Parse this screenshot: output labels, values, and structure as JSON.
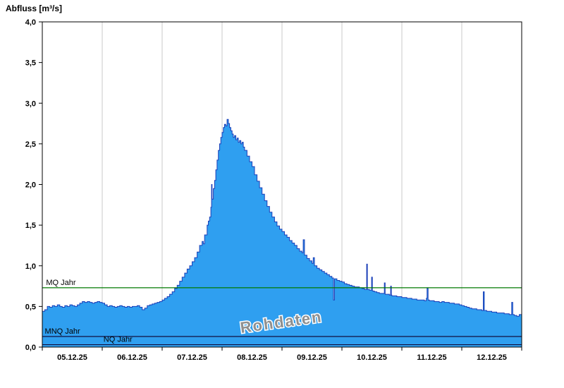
{
  "page": {
    "title": "Abfluss [m³/s]"
  },
  "chart_data": {
    "type": "area",
    "title": "Abfluss [m³/s]",
    "ylabel": "Abfluss [m³/s]",
    "xlabel": "",
    "ylim": [
      0,
      4.0
    ],
    "ytick_step": 0.5,
    "decimal_style": "comma",
    "grid": "vertical-day-separators",
    "legend_position": "none",
    "watermark": "Rohdaten",
    "series_name": "Rohdaten",
    "x_range_hours": [
      0,
      192
    ],
    "hours_per_day": 24,
    "day_labels": [
      "05.12.25",
      "06.12.25",
      "07.12.25",
      "08.12.25",
      "09.12.25",
      "10.12.25",
      "11.12.25",
      "12.12.25"
    ],
    "reference_lines": [
      {
        "name": "MQ Jahr",
        "value": 0.73,
        "color": "#007a00",
        "label_x_hours": 1.5,
        "label": "MQ Jahr"
      },
      {
        "name": "MNQ Jahr",
        "value": 0.13,
        "color": "#101040",
        "label_x_hours": 1.0,
        "label": "MNQ Jahr"
      },
      {
        "name": "NQ Jahr",
        "value": 0.03,
        "color": "#101040",
        "label_x_hours": 24.5,
        "label": "NQ Jahr"
      }
    ],
    "colors": {
      "fill": "#2f9ff0",
      "stroke": "#1a3eb8",
      "grid": "#c8c8c8",
      "border": "#000000",
      "tick_text": "#000000",
      "watermark_fill": "#8f8f8f",
      "watermark_outline": "#ffffff"
    },
    "points": [
      [
        0,
        0.44
      ],
      [
        1,
        0.46
      ],
      [
        2,
        0.5
      ],
      [
        3,
        0.49
      ],
      [
        4,
        0.51
      ],
      [
        5,
        0.5
      ],
      [
        6,
        0.52
      ],
      [
        7,
        0.5
      ],
      [
        8,
        0.49
      ],
      [
        9,
        0.51
      ],
      [
        10,
        0.5
      ],
      [
        11,
        0.52
      ],
      [
        12,
        0.51
      ],
      [
        13,
        0.5
      ],
      [
        14,
        0.52
      ],
      [
        15,
        0.54
      ],
      [
        16,
        0.56
      ],
      [
        17,
        0.55
      ],
      [
        18,
        0.56
      ],
      [
        19,
        0.55
      ],
      [
        20,
        0.54
      ],
      [
        21,
        0.55
      ],
      [
        22,
        0.56
      ],
      [
        23,
        0.55
      ],
      [
        24,
        0.54
      ],
      [
        25,
        0.52
      ],
      [
        26,
        0.5
      ],
      [
        27,
        0.51
      ],
      [
        28,
        0.5
      ],
      [
        29,
        0.49
      ],
      [
        30,
        0.5
      ],
      [
        31,
        0.51
      ],
      [
        32,
        0.5
      ],
      [
        33,
        0.49
      ],
      [
        34,
        0.5
      ],
      [
        35,
        0.49
      ],
      [
        36,
        0.5
      ],
      [
        37,
        0.5
      ],
      [
        38,
        0.51
      ],
      [
        39,
        0.49
      ],
      [
        40,
        0.46
      ],
      [
        41,
        0.48
      ],
      [
        42,
        0.51
      ],
      [
        43,
        0.52
      ],
      [
        44,
        0.53
      ],
      [
        45,
        0.54
      ],
      [
        46,
        0.55
      ],
      [
        47,
        0.56
      ],
      [
        48,
        0.58
      ],
      [
        49,
        0.6
      ],
      [
        50,
        0.62
      ],
      [
        51,
        0.65
      ],
      [
        52,
        0.68
      ],
      [
        53,
        0.72
      ],
      [
        54,
        0.76
      ],
      [
        55,
        0.81
      ],
      [
        56,
        0.86
      ],
      [
        57,
        0.91
      ],
      [
        58,
        0.96
      ],
      [
        59,
        1.0
      ],
      [
        60,
        1.05
      ],
      [
        61,
        1.1
      ],
      [
        62,
        1.17
      ],
      [
        63,
        1.25
      ],
      [
        64,
        1.3
      ],
      [
        64.5,
        1.27
      ],
      [
        65,
        1.38
      ],
      [
        66,
        1.5
      ],
      [
        66.5,
        1.55
      ],
      [
        67,
        1.6
      ],
      [
        67.5,
        1.72
      ],
      [
        67.8,
        2.0
      ],
      [
        68,
        1.82
      ],
      [
        68.5,
        1.95
      ],
      [
        69,
        2.05
      ],
      [
        69.5,
        2.18
      ],
      [
        70,
        2.3
      ],
      [
        70.5,
        2.42
      ],
      [
        71,
        2.5
      ],
      [
        71.5,
        2.58
      ],
      [
        72,
        2.64
      ],
      [
        72.5,
        2.7
      ],
      [
        73,
        2.74
      ],
      [
        73.5,
        2.72
      ],
      [
        74,
        2.8
      ],
      [
        74.5,
        2.75
      ],
      [
        75,
        2.7
      ],
      [
        75.5,
        2.66
      ],
      [
        76,
        2.62
      ],
      [
        76.5,
        2.58
      ],
      [
        77,
        2.6
      ],
      [
        77.5,
        2.55
      ],
      [
        78,
        2.57
      ],
      [
        78.5,
        2.52
      ],
      [
        79,
        2.54
      ],
      [
        79.5,
        2.5
      ],
      [
        80,
        2.52
      ],
      [
        80.5,
        2.46
      ],
      [
        81,
        2.42
      ],
      [
        82,
        2.35
      ],
      [
        83,
        2.28
      ],
      [
        84,
        2.22
      ],
      [
        85,
        2.12
      ],
      [
        86,
        2.04
      ],
      [
        87,
        1.96
      ],
      [
        88,
        1.88
      ],
      [
        89,
        1.8
      ],
      [
        90,
        1.73
      ],
      [
        91,
        1.66
      ],
      [
        92,
        1.6
      ],
      [
        93,
        1.54
      ],
      [
        94,
        1.49
      ],
      [
        95,
        1.45
      ],
      [
        96,
        1.42
      ],
      [
        97,
        1.38
      ],
      [
        98,
        1.35
      ],
      [
        99,
        1.31
      ],
      [
        100,
        1.28
      ],
      [
        101,
        1.25
      ],
      [
        102,
        1.21
      ],
      [
        103,
        1.18
      ],
      [
        104,
        1.16
      ],
      [
        104.5,
        1.32
      ],
      [
        105,
        1.13
      ],
      [
        106,
        1.09
      ],
      [
        107,
        1.06
      ],
      [
        108,
        1.03
      ],
      [
        108.5,
        1.1
      ],
      [
        109,
        1.0
      ],
      [
        110,
        0.97
      ],
      [
        111,
        0.95
      ],
      [
        112,
        0.93
      ],
      [
        113,
        0.91
      ],
      [
        114,
        0.89
      ],
      [
        115,
        0.87
      ],
      [
        116,
        0.85
      ],
      [
        116.6,
        0.58
      ],
      [
        117,
        0.84
      ],
      [
        118,
        0.82
      ],
      [
        119,
        0.81
      ],
      [
        120,
        0.8
      ],
      [
        121,
        0.78
      ],
      [
        122,
        0.77
      ],
      [
        123,
        0.76
      ],
      [
        124,
        0.75
      ],
      [
        125,
        0.74
      ],
      [
        126,
        0.74
      ],
      [
        127,
        0.73
      ],
      [
        128,
        0.72
      ],
      [
        129,
        0.71
      ],
      [
        129.9,
        1.02
      ],
      [
        130.2,
        0.71
      ],
      [
        131,
        0.7
      ],
      [
        131.9,
        0.86
      ],
      [
        132.2,
        0.69
      ],
      [
        133,
        0.68
      ],
      [
        134,
        0.67
      ],
      [
        135,
        0.66
      ],
      [
        136,
        0.66
      ],
      [
        137,
        0.79
      ],
      [
        137.3,
        0.65
      ],
      [
        138,
        0.65
      ],
      [
        139,
        0.64
      ],
      [
        139.5,
        0.75
      ],
      [
        139.8,
        0.64
      ],
      [
        140,
        0.63
      ],
      [
        141,
        0.63
      ],
      [
        142,
        0.62
      ],
      [
        143,
        0.62
      ],
      [
        144,
        0.61
      ],
      [
        145,
        0.61
      ],
      [
        146,
        0.6
      ],
      [
        147,
        0.6
      ],
      [
        148,
        0.59
      ],
      [
        149,
        0.59
      ],
      [
        150,
        0.58
      ],
      [
        151,
        0.58
      ],
      [
        152,
        0.58
      ],
      [
        153,
        0.57
      ],
      [
        153.8,
        0.6
      ],
      [
        154.1,
        0.72
      ],
      [
        154.5,
        0.58
      ],
      [
        155,
        0.57
      ],
      [
        156,
        0.57
      ],
      [
        157,
        0.56
      ],
      [
        158,
        0.56
      ],
      [
        159,
        0.55
      ],
      [
        160,
        0.56
      ],
      [
        161,
        0.55
      ],
      [
        162,
        0.55
      ],
      [
        163,
        0.54
      ],
      [
        164,
        0.54
      ],
      [
        165,
        0.53
      ],
      [
        166,
        0.53
      ],
      [
        167,
        0.52
      ],
      [
        168,
        0.51
      ],
      [
        169,
        0.5
      ],
      [
        170,
        0.49
      ],
      [
        171,
        0.48
      ],
      [
        172,
        0.47
      ],
      [
        173,
        0.47
      ],
      [
        174,
        0.46
      ],
      [
        175,
        0.46
      ],
      [
        176,
        0.45
      ],
      [
        176.6,
        0.68
      ],
      [
        177,
        0.45
      ],
      [
        178,
        0.44
      ],
      [
        179,
        0.44
      ],
      [
        180,
        0.43
      ],
      [
        181,
        0.43
      ],
      [
        182,
        0.42
      ],
      [
        183,
        0.42
      ],
      [
        184,
        0.42
      ],
      [
        185,
        0.41
      ],
      [
        186,
        0.41
      ],
      [
        187,
        0.4
      ],
      [
        188,
        0.55
      ],
      [
        188.4,
        0.4
      ],
      [
        189,
        0.39
      ],
      [
        190,
        0.38
      ],
      [
        191,
        0.4
      ],
      [
        192,
        0.37
      ]
    ]
  }
}
